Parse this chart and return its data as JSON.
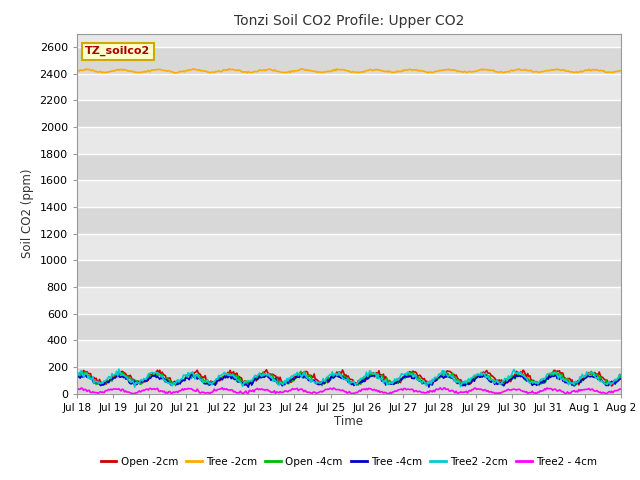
{
  "title": "Tonzi Soil CO2 Profile: Upper CO2",
  "ylabel": "Soil CO2 (ppm)",
  "xlabel": "Time",
  "ylim": [
    0,
    2700
  ],
  "yticks": [
    0,
    200,
    400,
    600,
    800,
    1000,
    1200,
    1400,
    1600,
    1800,
    2000,
    2200,
    2400,
    2600
  ],
  "fig_bg_color": "#ffffff",
  "plot_bg_color": "#e8e8e8",
  "grid_color": "#ffffff",
  "annotation_text": "TZ_soilco2",
  "annotation_color": "#aa0000",
  "annotation_bg": "#ffffcc",
  "annotation_edge": "#ccaa00",
  "n_points": 480,
  "xtick_labels": [
    "Jul 18",
    "Jul 19",
    "Jul 20",
    "Jul 21",
    "Jul 22",
    "Jul 23",
    "Jul 24",
    "Jul 25",
    "Jul 26",
    "Jul 27",
    "Jul 28",
    "Jul 29",
    "Jul 30",
    "Jul 31",
    "Aug 1",
    "Aug 2"
  ],
  "series": {
    "Open_2cm": {
      "color": "#cc0000",
      "label": "Open -2cm",
      "base": 120,
      "amp": 40,
      "phase": 0.0,
      "noise": 10
    },
    "Tree_2cm": {
      "color": "#ffaa00",
      "label": "Tree -2cm",
      "base": 2420,
      "amp": 10,
      "phase": 0.1,
      "noise": 3
    },
    "Open_4cm": {
      "color": "#00bb00",
      "label": "Open -4cm",
      "base": 110,
      "amp": 35,
      "phase": 0.3,
      "noise": 10
    },
    "Tree_4cm": {
      "color": "#0000cc",
      "label": "Tree -4cm",
      "base": 100,
      "amp": 30,
      "phase": 0.5,
      "noise": 8
    },
    "Tree2_2cm": {
      "color": "#00cccc",
      "label": "Tree2 -2cm",
      "base": 115,
      "amp": 38,
      "phase": 0.8,
      "noise": 10
    },
    "Tree2_4cm": {
      "color": "#ff00ff",
      "label": "Tree2 - 4cm",
      "base": 20,
      "amp": 15,
      "phase": 1.2,
      "noise": 5
    }
  }
}
